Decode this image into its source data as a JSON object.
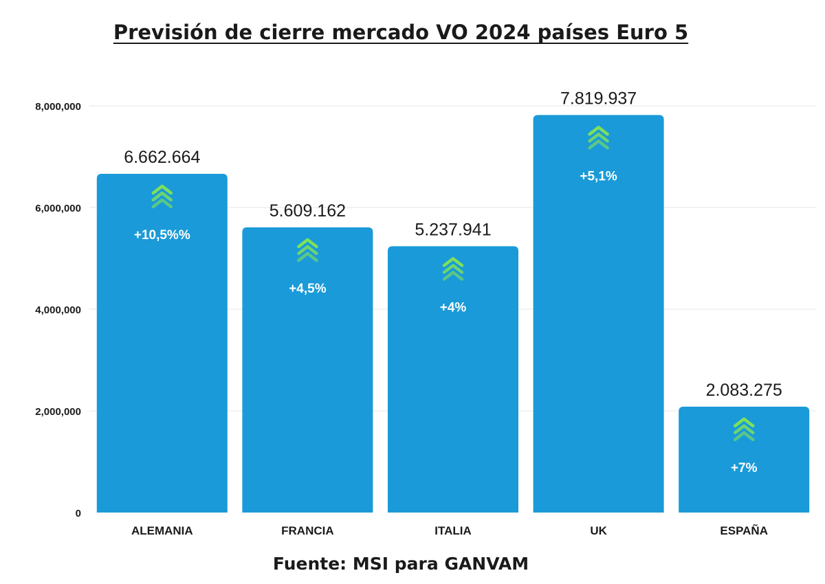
{
  "chart_data": {
    "type": "bar",
    "title": "Previsión de cierre mercado VO 2024 países Euro 5",
    "source": "Fuente: MSI para GANVAM",
    "categories": [
      "ALEMANIA",
      "FRANCIA",
      "ITALIA",
      "UK",
      "ESPAÑA"
    ],
    "values": [
      6662664,
      5609162,
      5237941,
      7819937,
      2083275
    ],
    "value_labels": [
      "6.662.664",
      "5.609.162",
      "5.237.941",
      "7.819.937",
      "2.083.275"
    ],
    "change_labels": [
      "+10,5%%",
      "+4,5%",
      "+4%",
      "+5,1%",
      "+7%"
    ],
    "ylim": [
      0,
      8000000
    ],
    "yticks": [
      0,
      2000000,
      4000000,
      6000000,
      8000000
    ],
    "ytick_labels": [
      "0",
      "2,000,000",
      "4,000,000",
      "6,000,000",
      "8,000,000"
    ],
    "xlabel": "",
    "ylabel": "",
    "grid": true,
    "legend": "none",
    "colors": {
      "bar": "#1a9ad8",
      "arrow": "#7ee05a",
      "change_text": "#ffffff",
      "text": "#1a1a1a",
      "grid": "#e6e6e6"
    }
  }
}
